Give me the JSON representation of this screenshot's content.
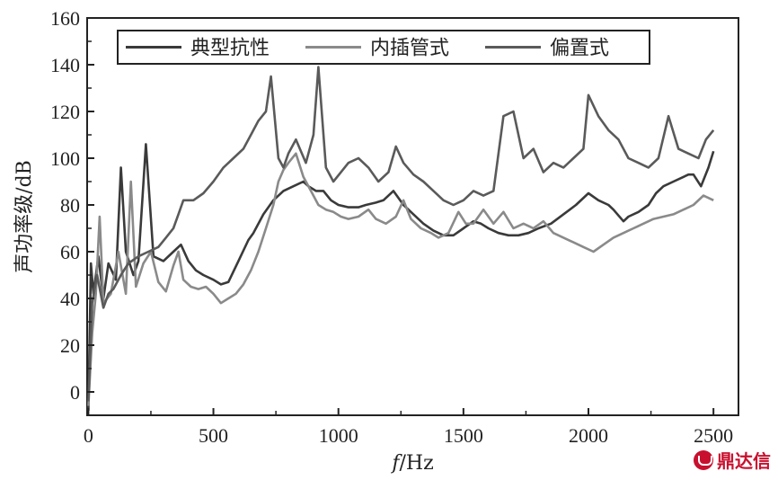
{
  "chart_data": {
    "type": "line",
    "title": "",
    "xlabel_italic": "f",
    "xlabel_rest": "/Hz",
    "ylabel": "声功率级/dB",
    "xlim": [
      -5,
      2600
    ],
    "ylim": [
      -10,
      160
    ],
    "xticks": [
      0,
      500,
      1000,
      1500,
      2000,
      2500
    ],
    "yticks": [
      0,
      20,
      40,
      60,
      80,
      100,
      120,
      140,
      160
    ],
    "legend_position": "top",
    "grid": false,
    "series": [
      {
        "name": "典型抗性",
        "color": "#3a3a3a",
        "points": [
          [
            0,
            -8
          ],
          [
            10,
            55
          ],
          [
            20,
            42
          ],
          [
            40,
            58
          ],
          [
            60,
            40
          ],
          [
            80,
            55
          ],
          [
            110,
            48
          ],
          [
            130,
            96
          ],
          [
            150,
            60
          ],
          [
            180,
            50
          ],
          [
            200,
            56
          ],
          [
            230,
            106
          ],
          [
            260,
            58
          ],
          [
            300,
            56
          ],
          [
            340,
            60
          ],
          [
            370,
            63
          ],
          [
            400,
            56
          ],
          [
            430,
            52
          ],
          [
            460,
            50
          ],
          [
            500,
            48
          ],
          [
            530,
            46
          ],
          [
            560,
            47
          ],
          [
            600,
            56
          ],
          [
            640,
            65
          ],
          [
            660,
            68
          ],
          [
            700,
            76
          ],
          [
            740,
            82
          ],
          [
            780,
            86
          ],
          [
            820,
            88
          ],
          [
            860,
            90
          ],
          [
            880,
            88
          ],
          [
            910,
            86
          ],
          [
            940,
            86
          ],
          [
            970,
            82
          ],
          [
            1000,
            80
          ],
          [
            1040,
            79
          ],
          [
            1080,
            79
          ],
          [
            1110,
            80
          ],
          [
            1150,
            81
          ],
          [
            1180,
            82
          ],
          [
            1220,
            86
          ],
          [
            1260,
            80
          ],
          [
            1300,
            76
          ],
          [
            1340,
            72
          ],
          [
            1380,
            69
          ],
          [
            1420,
            67
          ],
          [
            1460,
            67
          ],
          [
            1500,
            70
          ],
          [
            1540,
            73
          ],
          [
            1570,
            72
          ],
          [
            1600,
            70
          ],
          [
            1640,
            68
          ],
          [
            1680,
            67
          ],
          [
            1720,
            67
          ],
          [
            1760,
            68
          ],
          [
            1800,
            70
          ],
          [
            1850,
            72
          ],
          [
            1900,
            76
          ],
          [
            1950,
            80
          ],
          [
            2000,
            85
          ],
          [
            2040,
            82
          ],
          [
            2080,
            80
          ],
          [
            2100,
            78
          ],
          [
            2140,
            73
          ],
          [
            2160,
            75
          ],
          [
            2200,
            77
          ],
          [
            2240,
            80
          ],
          [
            2270,
            85
          ],
          [
            2300,
            88
          ],
          [
            2340,
            90
          ],
          [
            2380,
            92
          ],
          [
            2400,
            93
          ],
          [
            2420,
            93
          ],
          [
            2450,
            88
          ],
          [
            2480,
            96
          ],
          [
            2500,
            103
          ]
        ]
      },
      {
        "name": "内插管式",
        "color": "#8a8a8a",
        "points": [
          [
            0,
            -6
          ],
          [
            15,
            25
          ],
          [
            30,
            42
          ],
          [
            45,
            75
          ],
          [
            60,
            38
          ],
          [
            90,
            42
          ],
          [
            120,
            60
          ],
          [
            150,
            42
          ],
          [
            170,
            90
          ],
          [
            190,
            45
          ],
          [
            220,
            55
          ],
          [
            250,
            60
          ],
          [
            280,
            47
          ],
          [
            310,
            43
          ],
          [
            340,
            54
          ],
          [
            360,
            60
          ],
          [
            380,
            48
          ],
          [
            410,
            45
          ],
          [
            440,
            44
          ],
          [
            470,
            45
          ],
          [
            500,
            42
          ],
          [
            530,
            38
          ],
          [
            560,
            40
          ],
          [
            590,
            42
          ],
          [
            620,
            46
          ],
          [
            650,
            52
          ],
          [
            680,
            60
          ],
          [
            710,
            70
          ],
          [
            740,
            80
          ],
          [
            760,
            90
          ],
          [
            780,
            95
          ],
          [
            800,
            98
          ],
          [
            830,
            102
          ],
          [
            860,
            92
          ],
          [
            890,
            86
          ],
          [
            920,
            80
          ],
          [
            950,
            78
          ],
          [
            980,
            77
          ],
          [
            1010,
            75
          ],
          [
            1040,
            74
          ],
          [
            1080,
            75
          ],
          [
            1120,
            78
          ],
          [
            1150,
            74
          ],
          [
            1190,
            72
          ],
          [
            1230,
            75
          ],
          [
            1260,
            82
          ],
          [
            1290,
            74
          ],
          [
            1330,
            70
          ],
          [
            1370,
            68
          ],
          [
            1400,
            66
          ],
          [
            1440,
            68
          ],
          [
            1480,
            77
          ],
          [
            1510,
            72
          ],
          [
            1540,
            72
          ],
          [
            1580,
            78
          ],
          [
            1620,
            72
          ],
          [
            1660,
            77
          ],
          [
            1700,
            70
          ],
          [
            1740,
            72
          ],
          [
            1780,
            70
          ],
          [
            1820,
            73
          ],
          [
            1860,
            68
          ],
          [
            1900,
            66
          ],
          [
            1940,
            64
          ],
          [
            1980,
            62
          ],
          [
            2020,
            60
          ],
          [
            2060,
            63
          ],
          [
            2100,
            66
          ],
          [
            2140,
            68
          ],
          [
            2180,
            70
          ],
          [
            2220,
            72
          ],
          [
            2260,
            74
          ],
          [
            2300,
            75
          ],
          [
            2340,
            76
          ],
          [
            2380,
            78
          ],
          [
            2420,
            80
          ],
          [
            2460,
            84
          ],
          [
            2500,
            82
          ]
        ]
      },
      {
        "name": "偏置式",
        "color": "#5a5a5a",
        "points": [
          [
            0,
            -4
          ],
          [
            15,
            38
          ],
          [
            35,
            50
          ],
          [
            60,
            36
          ],
          [
            80,
            42
          ],
          [
            100,
            44
          ],
          [
            130,
            50
          ],
          [
            160,
            55
          ],
          [
            200,
            58
          ],
          [
            240,
            60
          ],
          [
            280,
            62
          ],
          [
            310,
            66
          ],
          [
            340,
            70
          ],
          [
            360,
            76
          ],
          [
            380,
            82
          ],
          [
            420,
            82
          ],
          [
            460,
            85
          ],
          [
            500,
            90
          ],
          [
            540,
            96
          ],
          [
            580,
            100
          ],
          [
            620,
            104
          ],
          [
            650,
            110
          ],
          [
            680,
            116
          ],
          [
            710,
            120
          ],
          [
            730,
            135
          ],
          [
            760,
            100
          ],
          [
            780,
            96
          ],
          [
            800,
            102
          ],
          [
            830,
            108
          ],
          [
            870,
            98
          ],
          [
            900,
            110
          ],
          [
            920,
            139
          ],
          [
            950,
            96
          ],
          [
            980,
            90
          ],
          [
            1010,
            94
          ],
          [
            1040,
            98
          ],
          [
            1080,
            100
          ],
          [
            1120,
            96
          ],
          [
            1160,
            90
          ],
          [
            1200,
            94
          ],
          [
            1230,
            105
          ],
          [
            1260,
            98
          ],
          [
            1300,
            93
          ],
          [
            1340,
            90
          ],
          [
            1380,
            86
          ],
          [
            1420,
            82
          ],
          [
            1460,
            80
          ],
          [
            1500,
            82
          ],
          [
            1540,
            86
          ],
          [
            1580,
            84
          ],
          [
            1620,
            86
          ],
          [
            1660,
            118
          ],
          [
            1700,
            120
          ],
          [
            1740,
            100
          ],
          [
            1780,
            104
          ],
          [
            1820,
            94
          ],
          [
            1860,
            98
          ],
          [
            1900,
            96
          ],
          [
            1940,
            100
          ],
          [
            1980,
            104
          ],
          [
            2000,
            127
          ],
          [
            2040,
            118
          ],
          [
            2080,
            112
          ],
          [
            2120,
            108
          ],
          [
            2160,
            100
          ],
          [
            2200,
            98
          ],
          [
            2240,
            96
          ],
          [
            2280,
            100
          ],
          [
            2320,
            118
          ],
          [
            2360,
            104
          ],
          [
            2400,
            102
          ],
          [
            2440,
            100
          ],
          [
            2470,
            108
          ],
          [
            2500,
            112
          ]
        ]
      }
    ]
  }
}
